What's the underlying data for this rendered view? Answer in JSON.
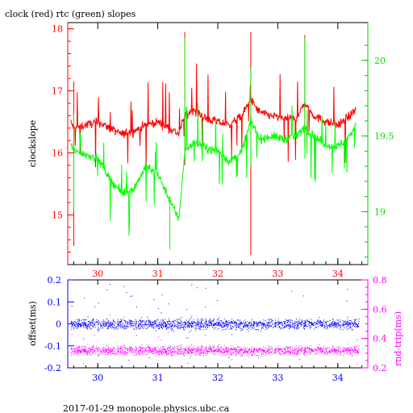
{
  "title": "clock (red) rtc (green) slopes",
  "footer": "2017-01-29  monopole.physics.ubc.ca",
  "colors": {
    "clock": "#ff0000",
    "rtc": "#00ff00",
    "offset": "#0000ff",
    "rndtrip": "#ff00ff",
    "axis": "#000000"
  },
  "chart_data": [
    {
      "type": "line",
      "title": "clock (red) rtc (green) slopes",
      "xlim": [
        29.5,
        34.5
      ],
      "x_ticks": [
        "30",
        "31",
        "32",
        "33",
        "34"
      ],
      "x_tick_values": [
        30,
        31,
        32,
        33,
        34
      ],
      "ylabel": "clockslope",
      "ylim": [
        14.2,
        18.1
      ],
      "y_ticks": [
        "15",
        "16",
        "17",
        "18"
      ],
      "y_tick_values": [
        15,
        16,
        17,
        18
      ],
      "y2lim": [
        18.65,
        20.25
      ],
      "y2_ticks": [
        "19",
        "19.5",
        "20"
      ],
      "y2_tick_values": [
        19,
        19.5,
        20
      ],
      "series": [
        {
          "name": "clock",
          "axis": "left",
          "x": [
            29.55,
            29.6,
            29.8,
            30.0,
            30.2,
            30.4,
            30.6,
            30.8,
            31.0,
            31.2,
            31.35,
            31.45,
            31.6,
            31.8,
            32.0,
            32.2,
            32.4,
            32.55,
            32.7,
            32.9,
            33.1,
            33.3,
            33.45,
            33.6,
            33.8,
            34.0,
            34.2,
            34.3
          ],
          "y": [
            16.5,
            16.4,
            16.45,
            16.5,
            16.4,
            16.3,
            16.35,
            16.45,
            16.5,
            16.4,
            16.3,
            16.6,
            16.7,
            16.55,
            16.5,
            16.45,
            16.6,
            16.85,
            16.65,
            16.6,
            16.55,
            16.55,
            16.8,
            16.6,
            16.5,
            16.45,
            16.6,
            16.7
          ],
          "spikes": [
            [
              29.6,
              14.5,
              17.15
            ],
            [
              31.45,
              15.8,
              17.95
            ],
            [
              32.55,
              14.35,
              17.95
            ],
            [
              33.45,
              16.1,
              17.9
            ]
          ]
        },
        {
          "name": "rtc",
          "axis": "right",
          "x": [
            29.55,
            29.6,
            29.8,
            30.0,
            30.2,
            30.4,
            30.6,
            30.8,
            31.0,
            31.2,
            31.35,
            31.45,
            31.6,
            31.8,
            32.0,
            32.2,
            32.4,
            32.55,
            32.7,
            32.9,
            33.1,
            33.3,
            33.45,
            33.6,
            33.8,
            34.0,
            34.2,
            34.3
          ],
          "y": [
            19.45,
            19.4,
            19.38,
            19.35,
            19.22,
            19.12,
            19.15,
            19.3,
            19.25,
            19.08,
            18.95,
            19.4,
            19.46,
            19.42,
            19.4,
            19.33,
            19.4,
            19.6,
            19.48,
            19.5,
            19.48,
            19.5,
            19.56,
            19.5,
            19.44,
            19.43,
            19.5,
            19.58
          ],
          "spikes": [
            [
              29.6,
              19.0,
              19.65
            ],
            [
              31.45,
              19.35,
              20.15
            ],
            [
              32.55,
              19.3,
              19.95
            ],
            [
              33.45,
              19.35,
              20.15
            ],
            [
              31.2,
              18.75,
              19.1
            ]
          ]
        }
      ]
    },
    {
      "type": "scatter",
      "xlim": [
        29.5,
        34.5
      ],
      "x_ticks": [
        "30",
        "31",
        "32",
        "33",
        "34"
      ],
      "x_tick_values": [
        30,
        31,
        32,
        33,
        34
      ],
      "ylabel": "offset(ms)",
      "ylim": [
        -0.2,
        0.2
      ],
      "y_ticks": [
        "-0.2",
        "-0.1",
        "0",
        "0.1",
        "0.2"
      ],
      "y_tick_values": [
        -0.2,
        -0.1,
        0,
        0.1,
        0.2
      ],
      "y2label": "rnd-trip(ms)",
      "y2lim": [
        0.2,
        0.8
      ],
      "y2_ticks": [
        "0.2",
        "0.4",
        "0.6",
        "0.8"
      ],
      "y2_tick_values": [
        0.2,
        0.4,
        0.6,
        0.8
      ],
      "series": [
        {
          "name": "offset",
          "axis": "left",
          "center": 0.0,
          "spread": 0.03,
          "xrange": [
            29.55,
            34.35
          ]
        },
        {
          "name": "rnd-trip",
          "axis": "right",
          "center": 0.32,
          "spread": 0.04,
          "xrange": [
            29.55,
            34.35
          ]
        }
      ]
    }
  ]
}
